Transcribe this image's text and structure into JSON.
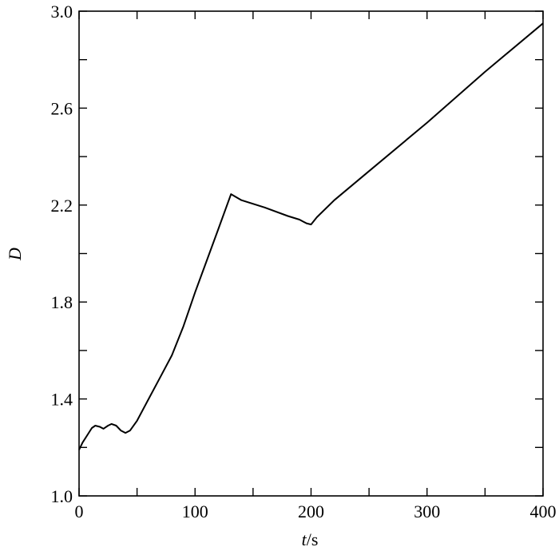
{
  "chart_data": {
    "type": "line",
    "title": "",
    "xlabel_italic": "t",
    "xlabel_unit": "/s",
    "ylabel": "D",
    "xlim": [
      0,
      400
    ],
    "ylim": [
      1.0,
      3.0
    ],
    "x_ticks": [
      0,
      100,
      200,
      300,
      400
    ],
    "x_tick_labels": [
      "0",
      "100",
      "200",
      "300",
      "400"
    ],
    "x_minor_step": 50,
    "y_ticks": [
      1.0,
      1.4,
      1.8,
      2.2,
      2.6,
      3.0
    ],
    "y_tick_labels": [
      "1.0",
      "1.4",
      "1.8",
      "2.2",
      "2.6",
      "3.0"
    ],
    "y_minor_step": 0.2,
    "grid": false,
    "line_color": "#000000",
    "series": [
      {
        "x": [
          0,
          3,
          7,
          11,
          14,
          18,
          21,
          25,
          28,
          32,
          36,
          40,
          44,
          50,
          60,
          70,
          80,
          90,
          100,
          110,
          120,
          131,
          140,
          160,
          180,
          190,
          196,
          200,
          205,
          220,
          250,
          300,
          350,
          400
        ],
        "y": [
          1.19,
          1.22,
          1.25,
          1.28,
          1.29,
          1.285,
          1.277,
          1.29,
          1.297,
          1.29,
          1.27,
          1.26,
          1.27,
          1.31,
          1.4,
          1.49,
          1.58,
          1.7,
          1.84,
          1.97,
          2.1,
          2.245,
          2.22,
          2.19,
          2.155,
          2.14,
          2.125,
          2.12,
          2.15,
          2.22,
          2.34,
          2.54,
          2.75,
          2.95
        ]
      }
    ]
  }
}
